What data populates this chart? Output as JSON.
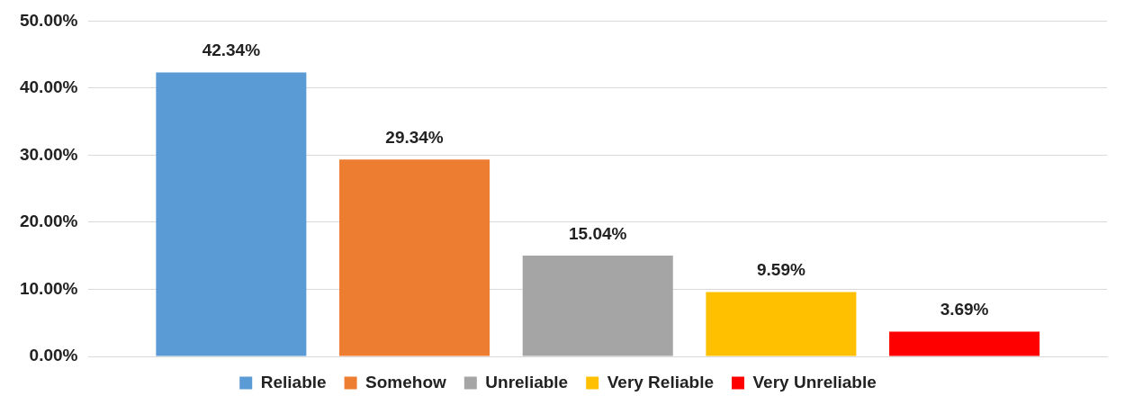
{
  "chart_data": {
    "type": "bar",
    "categories": [
      null
    ],
    "series": [
      {
        "name": "Reliable",
        "color": "#5b9bd5",
        "values": [
          42.34
        ],
        "value_labels": [
          "42.34%"
        ]
      },
      {
        "name": "Somehow",
        "color": "#ed7d31",
        "values": [
          29.34
        ],
        "value_labels": [
          "29.34%"
        ]
      },
      {
        "name": "Unreliable",
        "color": "#a5a5a5",
        "values": [
          15.04
        ],
        "value_labels": [
          "15.04%"
        ]
      },
      {
        "name": "Very Reliable",
        "color": "#ffc000",
        "values": [
          9.59
        ],
        "value_labels": [
          "9.59%"
        ]
      },
      {
        "name": "Very Unreliable",
        "color": "#ff0000",
        "values": [
          3.69
        ],
        "value_labels": [
          "3.69%"
        ]
      }
    ],
    "ylim": [
      0,
      50
    ],
    "yticks": [
      {
        "value": 0,
        "label": "0.00%"
      },
      {
        "value": 10,
        "label": "10.00%"
      },
      {
        "value": 20,
        "label": "20.00%"
      },
      {
        "value": 30,
        "label": "30.00%"
      },
      {
        "value": 40,
        "label": "40.00%"
      },
      {
        "value": 50,
        "label": "50.00%"
      }
    ],
    "grid": "y",
    "legend": "bottom",
    "tick_labels": "y"
  }
}
